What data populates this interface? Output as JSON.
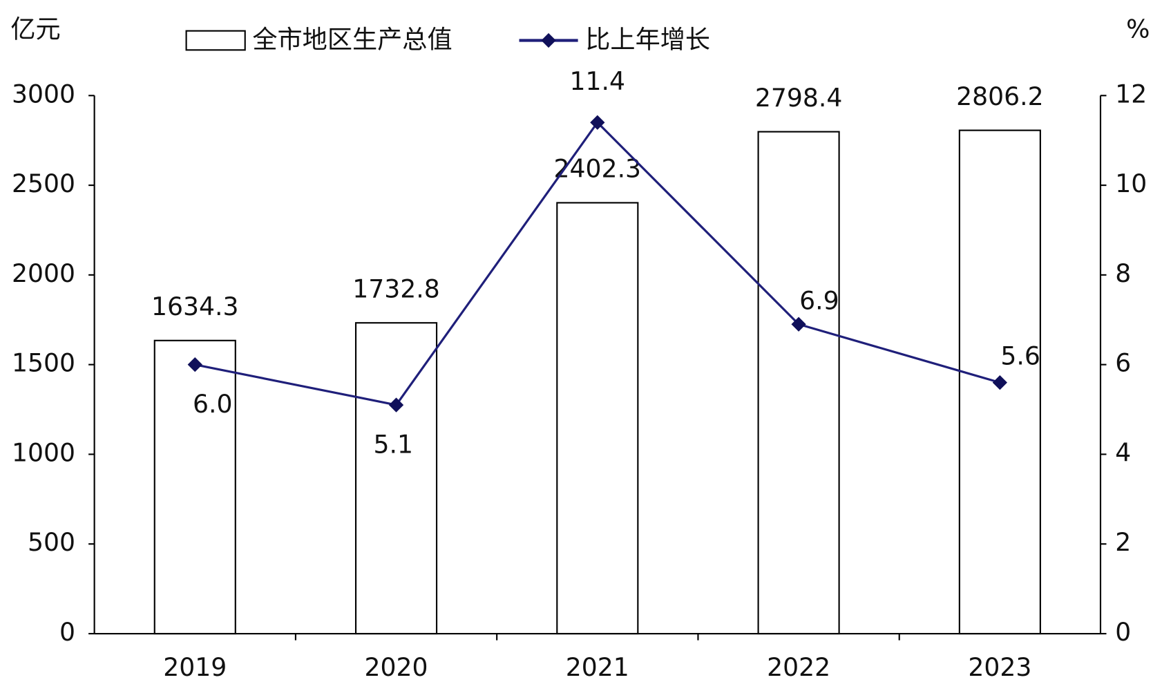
{
  "chart_data": {
    "type": "combo",
    "ylabel": "亿元",
    "y2label": "%",
    "categories": [
      "2019",
      "2020",
      "2021",
      "2022",
      "2023"
    ],
    "series": [
      {
        "name": "全市地区生产总值",
        "type": "bar",
        "color": "#ffffff",
        "values": [
          1634.3,
          1732.8,
          2402.3,
          2798.4,
          2806.2
        ]
      },
      {
        "name": "比上年增长",
        "type": "line",
        "axis": "y2",
        "color": "#1f1f7a",
        "values": [
          6.0,
          5.1,
          11.4,
          6.9,
          5.6
        ],
        "value_labels": [
          "6.0",
          "5.1",
          "11.4",
          "6.9",
          "5.6"
        ]
      }
    ],
    "ylim": [
      0,
      3000
    ],
    "yticks": [
      0,
      500,
      1000,
      1500,
      2000,
      2500,
      3000
    ],
    "y2lim": [
      0,
      12
    ],
    "y2ticks": [
      0,
      2,
      4,
      6,
      8,
      10,
      12
    ],
    "grid": false
  }
}
